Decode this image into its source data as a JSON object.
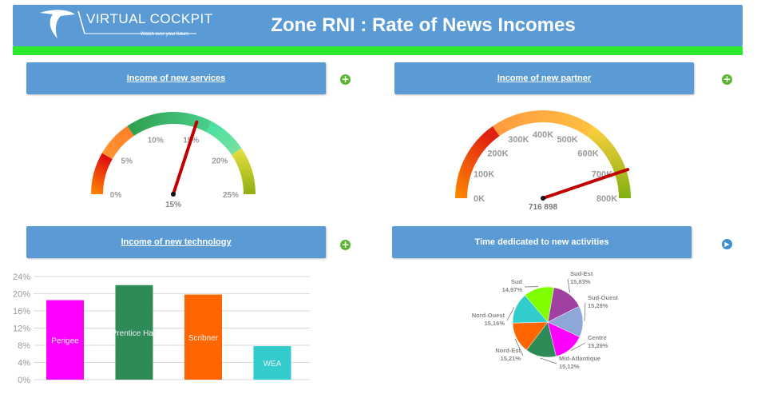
{
  "header": {
    "logo_text": "VIRTUAL COCKPIT",
    "logo_tagline": "Watch over your future",
    "title": "Zone RNI : Rate of News Incomes",
    "colors": {
      "bar": "#5b9bd5",
      "stripe": "#2ee82e"
    }
  },
  "panels": {
    "services": {
      "title": "Income of new services",
      "action_icon": "plus-icon"
    },
    "partner": {
      "title": "Income of new partner",
      "action_icon": "plus-icon"
    },
    "technology": {
      "title": "Income of new technology",
      "action_icon": "plus-icon"
    },
    "activities": {
      "title": "Time dedicated to new activities",
      "action_icon": "arrow-right-icon"
    }
  },
  "gauge_services": {
    "ticks": [
      "0%",
      "5%",
      "10%",
      "15%",
      "20%",
      "25%"
    ],
    "min": 0,
    "max": 25,
    "value": 15,
    "value_label": "15%"
  },
  "gauge_partner": {
    "ticks": [
      "0K",
      "100K",
      "200K",
      "300K",
      "400K",
      "500K",
      "600K",
      "700K",
      "800K"
    ],
    "min": 0,
    "max": 800000,
    "value": 716898,
    "value_label": "716 898"
  },
  "chart_data": [
    {
      "type": "bar",
      "categories": [
        "Perigee",
        "Prentice Hall",
        "Scribner",
        "WEA"
      ],
      "values": [
        18.5,
        22,
        19.8,
        7.8
      ],
      "colors": [
        "#ff00ff",
        "#2e8b57",
        "#ff6600",
        "#33cccc"
      ],
      "yticks": [
        "0%",
        "4%",
        "8%",
        "12%",
        "16%",
        "20%",
        "24%"
      ],
      "ylim": [
        0,
        24
      ],
      "grid": true
    },
    {
      "type": "pie",
      "labels": [
        {
          "name": "Sud-Est",
          "value": "15,83%"
        },
        {
          "name": "Sud-Ouest",
          "value": "15,28%"
        },
        {
          "name": "Centre",
          "value": "15,29%"
        },
        {
          "name": "Mid-Atlantique",
          "value": "15,12%"
        },
        {
          "name": "Nord-Est",
          "value": "15,21%"
        },
        {
          "name": "Nord-Ouest",
          "value": "15,16%"
        },
        {
          "name": "Sud",
          "value": "14,97%"
        }
      ],
      "values": [
        15.83,
        15.28,
        15.29,
        15.12,
        15.21,
        15.16,
        14.97
      ],
      "colors": [
        "#a040a0",
        "#8ea7d8",
        "#ff00ff",
        "#2e8b57",
        "#ff6600",
        "#33cccc",
        "#80ff00"
      ]
    }
  ]
}
